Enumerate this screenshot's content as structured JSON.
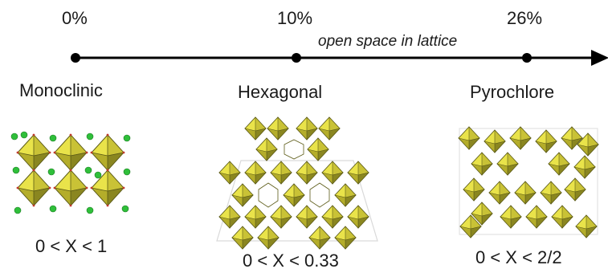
{
  "axis": {
    "markers": [
      "0%",
      "10%",
      "26%"
    ],
    "annotation": "open space in lattice"
  },
  "phases": [
    {
      "name": "Monoclinic",
      "range": "0 < X < 1"
    },
    {
      "name": "Hexagonal",
      "range": "0 < X < 0.33"
    },
    {
      "name": "Pyrochlore",
      "range": "0 < X < 2/2"
    }
  ],
  "colors": {
    "octahedron_fill": "#e9e34a",
    "octahedron_dark": "#8a8620",
    "octahedron_edge": "#5b5a16",
    "atom_green": "#2fbf3a",
    "axis": "#000000"
  }
}
